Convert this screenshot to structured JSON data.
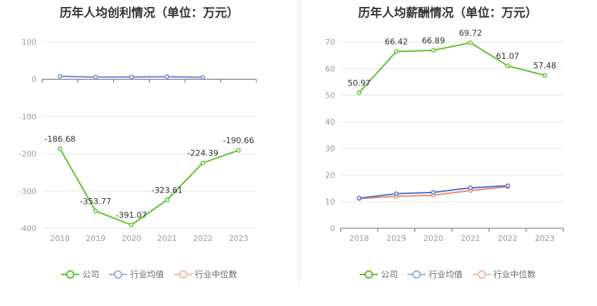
{
  "chart_data": [
    {
      "type": "line",
      "title": "历年人均创利情况（单位：万元）",
      "categories": [
        "2018",
        "2019",
        "2020",
        "2021",
        "2022",
        "2023"
      ],
      "ylim": [
        -400,
        100
      ],
      "yticks": [
        100,
        0,
        -100,
        -200,
        -300,
        -400
      ],
      "series": [
        {
          "name": "公司",
          "color": "#5cc22c",
          "values": [
            -186.68,
            -353.77,
            -391.07,
            -323.61,
            -224.39,
            -190.66
          ],
          "labels": [
            "-186.68",
            "-353.77",
            "-391.07",
            "-323.61",
            "-224.39",
            "-190.66"
          ]
        },
        {
          "name": "行业均值",
          "color": "#6b8fde",
          "values": [
            8,
            6,
            6,
            7,
            5,
            null
          ]
        },
        {
          "name": "行业中位数",
          "color": "#f08a69",
          "values": [
            8,
            6,
            6,
            7,
            5,
            null
          ]
        }
      ],
      "legend": [
        "公司",
        "行业均值",
        "行业中位数"
      ]
    },
    {
      "type": "line",
      "title": "历年人均薪酬情况（单位：万元）",
      "categories": [
        "2018",
        "2019",
        "2020",
        "2021",
        "2022",
        "2023"
      ],
      "ylim": [
        0,
        70
      ],
      "yticks": [
        70,
        60,
        50,
        40,
        30,
        20,
        10,
        0
      ],
      "series": [
        {
          "name": "公司",
          "color": "#5cc22c",
          "values": [
            50.97,
            66.42,
            66.89,
            69.72,
            61.07,
            57.48
          ],
          "labels": [
            "50.97",
            "66.42",
            "66.89",
            "69.72",
            "61.07",
            "57.48"
          ]
        },
        {
          "name": "行业均值",
          "color": "#4a70cc",
          "values": [
            11.3,
            13.0,
            13.5,
            15.2,
            16.0,
            null
          ]
        },
        {
          "name": "行业中位数",
          "color": "#f08a69",
          "values": [
            11.2,
            12.0,
            12.4,
            14.2,
            15.6,
            null
          ]
        }
      ],
      "legend": [
        "公司",
        "行业均值",
        "行业中位数"
      ]
    }
  ]
}
